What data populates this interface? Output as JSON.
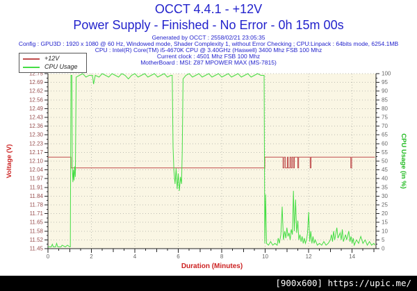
{
  "header": {
    "title": "OCCT 4.4.1 - +12V",
    "subtitle": "Power Supply - Finished - No Error - 0h 15m 00s",
    "generated": "Generated by OCCT : 2558/02/21 23:05:35",
    "config_lines": [
      "Config : GPU3D : 1920 x 1080 @ 60 Hz, Windowed mode, Shader Complexity 1, without Error Checking ; CPU:Linpack : 64bits mode, 6254.1MB",
      "CPU : Intel(R) Core(TM) i5-4670K CPU @ 3.40GHz (Haswell) 3400 Mhz FSB 100 Mhz",
      "Current clock : 4501 Mhz FSB 100 Mhz",
      "MotherBoard : MSI: Z87 MPOWER MAX (MS-7815)"
    ]
  },
  "legend": {
    "items": [
      {
        "label": "+12V",
        "color": "#bf4b4b"
      },
      {
        "label": "CPU Usage",
        "color": "#44dd44"
      }
    ]
  },
  "watermark": "[900x600] https://upic.me/",
  "colors": {
    "header_blue": "#2222cc",
    "axis_red": "#cc2222",
    "axis_green": "#22bb22",
    "trace_red": "#bf4b4b",
    "trace_green": "#44dd44",
    "plot_bg": "#faf6e4",
    "grid": "#bcbcb2",
    "axis_line": "#222222",
    "tick_label_left": "#995050",
    "tick_label": "#666666"
  },
  "chart_data": {
    "type": "line",
    "title": "OCCT 4.4.1 - +12V",
    "grid": true,
    "legend_position": "top-left",
    "x_axis": {
      "label": "Duration (Minutes)",
      "min": 0,
      "max": 15.1,
      "major_ticks": [
        0,
        2,
        4,
        6,
        8,
        10,
        12,
        14
      ],
      "minor_step": 0.5
    },
    "y_left": {
      "label": "Voltage (V)",
      "min": 11.45,
      "max": 12.75,
      "tick_labels": [
        "11.45",
        "11.52",
        "11.58",
        "11.65",
        "11.71",
        "11.78",
        "11.84",
        "11.91",
        "11.97",
        "12.04",
        "12.10",
        "12.17",
        "12.23",
        "12.30",
        "12.36",
        "12.43",
        "12.49",
        "12.56",
        "12.62",
        "12.69",
        "12.75"
      ]
    },
    "y_right": {
      "label": "CPU Usage (in %)",
      "min": 0,
      "max": 100,
      "tick_step": 5
    },
    "series": [
      {
        "name": "+12V",
        "axis": "left",
        "color": "#bf4b4b",
        "points": [
          [
            0,
            12.13
          ],
          [
            1.06,
            12.13
          ],
          [
            1.06,
            12.05
          ],
          [
            9.98,
            12.05
          ],
          [
            9.98,
            12.13
          ],
          [
            10.82,
            12.13
          ],
          [
            10.82,
            12.05
          ],
          [
            10.87,
            12.05
          ],
          [
            10.87,
            12.13
          ],
          [
            10.93,
            12.13
          ],
          [
            10.93,
            12.05
          ],
          [
            11.02,
            12.05
          ],
          [
            11.02,
            12.13
          ],
          [
            11.06,
            12.13
          ],
          [
            11.06,
            12.05
          ],
          [
            11.14,
            12.05
          ],
          [
            11.14,
            12.13
          ],
          [
            11.19,
            12.13
          ],
          [
            11.19,
            12.05
          ],
          [
            11.24,
            12.05
          ],
          [
            11.24,
            12.13
          ],
          [
            11.3,
            12.13
          ],
          [
            11.3,
            12.05
          ],
          [
            11.34,
            12.05
          ],
          [
            11.34,
            12.13
          ],
          [
            11.5,
            12.13
          ],
          [
            11.5,
            12.05
          ],
          [
            11.54,
            12.05
          ],
          [
            11.54,
            12.13
          ],
          [
            12.07,
            12.13
          ],
          [
            12.07,
            12.05
          ],
          [
            12.11,
            12.05
          ],
          [
            12.11,
            12.13
          ],
          [
            13.94,
            12.13
          ],
          [
            13.94,
            12.05
          ],
          [
            13.98,
            12.05
          ],
          [
            13.98,
            12.13
          ],
          [
            15.05,
            12.13
          ]
        ]
      },
      {
        "name": "CPU Usage",
        "axis": "right",
        "color": "#44dd44",
        "points": [
          [
            0,
            1
          ],
          [
            0.15,
            1
          ],
          [
            0.2,
            2.5
          ],
          [
            0.25,
            1
          ],
          [
            0.35,
            1
          ],
          [
            0.4,
            3
          ],
          [
            0.45,
            1
          ],
          [
            0.6,
            1
          ],
          [
            0.65,
            2
          ],
          [
            0.8,
            1
          ],
          [
            0.9,
            2
          ],
          [
            1.0,
            1
          ],
          [
            1.03,
            1
          ],
          [
            1.06,
            99
          ],
          [
            1.1,
            99
          ],
          [
            1.12,
            46
          ],
          [
            1.15,
            38
          ],
          [
            1.17,
            45
          ],
          [
            1.2,
            39
          ],
          [
            1.23,
            47
          ],
          [
            1.26,
            41
          ],
          [
            1.3,
            98
          ],
          [
            1.45,
            99
          ],
          [
            1.6,
            100
          ],
          [
            1.75,
            98
          ],
          [
            1.9,
            99
          ],
          [
            2.05,
            99
          ],
          [
            2.1,
            94
          ],
          [
            2.18,
            99
          ],
          [
            2.35,
            98
          ],
          [
            2.5,
            100
          ],
          [
            2.65,
            99
          ],
          [
            2.8,
            98
          ],
          [
            2.95,
            100
          ],
          [
            3.1,
            99
          ],
          [
            3.25,
            98
          ],
          [
            3.4,
            100
          ],
          [
            3.55,
            99
          ],
          [
            3.7,
            97
          ],
          [
            3.85,
            99
          ],
          [
            4.0,
            100
          ],
          [
            4.15,
            98
          ],
          [
            4.3,
            99
          ],
          [
            4.45,
            100
          ],
          [
            4.6,
            98
          ],
          [
            4.75,
            99
          ],
          [
            4.9,
            100
          ],
          [
            5.05,
            98
          ],
          [
            5.2,
            99
          ],
          [
            5.35,
            100
          ],
          [
            5.5,
            98
          ],
          [
            5.65,
            99
          ],
          [
            5.72,
            99
          ],
          [
            5.76,
            58
          ],
          [
            5.8,
            44
          ],
          [
            5.85,
            37
          ],
          [
            5.9,
            46
          ],
          [
            5.95,
            34
          ],
          [
            6.0,
            43
          ],
          [
            6.05,
            33
          ],
          [
            6.1,
            41
          ],
          [
            6.15,
            37
          ],
          [
            6.18,
            55
          ],
          [
            6.22,
            97
          ],
          [
            6.35,
            99
          ],
          [
            6.5,
            100
          ],
          [
            6.65,
            98
          ],
          [
            6.8,
            99
          ],
          [
            6.95,
            100
          ],
          [
            7.1,
            98
          ],
          [
            7.25,
            99
          ],
          [
            7.4,
            100
          ],
          [
            7.55,
            98
          ],
          [
            7.7,
            99
          ],
          [
            7.85,
            100
          ],
          [
            8.0,
            98
          ],
          [
            8.15,
            99
          ],
          [
            8.3,
            100
          ],
          [
            8.45,
            98
          ],
          [
            8.6,
            99
          ],
          [
            8.75,
            100
          ],
          [
            8.9,
            98
          ],
          [
            9.05,
            99
          ],
          [
            9.2,
            100
          ],
          [
            9.35,
            98
          ],
          [
            9.5,
            99
          ],
          [
            9.65,
            100
          ],
          [
            9.8,
            99
          ],
          [
            9.95,
            99
          ],
          [
            9.98,
            3
          ],
          [
            10.02,
            31
          ],
          [
            10.06,
            3
          ],
          [
            10.15,
            2
          ],
          [
            10.25,
            4
          ],
          [
            10.35,
            2
          ],
          [
            10.45,
            3
          ],
          [
            10.55,
            2
          ],
          [
            10.6,
            6
          ],
          [
            10.65,
            3
          ],
          [
            10.72,
            8
          ],
          [
            10.78,
            24
          ],
          [
            10.84,
            5
          ],
          [
            10.9,
            10
          ],
          [
            10.95,
            6
          ],
          [
            11.0,
            12
          ],
          [
            11.05,
            7
          ],
          [
            11.1,
            9
          ],
          [
            11.15,
            5
          ],
          [
            11.2,
            11
          ],
          [
            11.25,
            8
          ],
          [
            11.3,
            33
          ],
          [
            11.34,
            10
          ],
          [
            11.4,
            28
          ],
          [
            11.45,
            9
          ],
          [
            11.5,
            16
          ],
          [
            11.55,
            5
          ],
          [
            11.6,
            8
          ],
          [
            11.65,
            4
          ],
          [
            11.7,
            7
          ],
          [
            11.75,
            3
          ],
          [
            11.8,
            6
          ],
          [
            11.85,
            3
          ],
          [
            11.9,
            5
          ],
          [
            11.95,
            9
          ],
          [
            12.0,
            21
          ],
          [
            12.05,
            4
          ],
          [
            12.1,
            10
          ],
          [
            12.15,
            3
          ],
          [
            12.2,
            7
          ],
          [
            12.25,
            3
          ],
          [
            12.3,
            5
          ],
          [
            12.4,
            2
          ],
          [
            12.5,
            3
          ],
          [
            12.6,
            2
          ],
          [
            12.7,
            4
          ],
          [
            12.8,
            2
          ],
          [
            12.9,
            3
          ],
          [
            13.0,
            5
          ],
          [
            13.05,
            8
          ],
          [
            13.1,
            4
          ],
          [
            13.15,
            10
          ],
          [
            13.2,
            5
          ],
          [
            13.3,
            12
          ],
          [
            13.35,
            6
          ],
          [
            13.45,
            9
          ],
          [
            13.5,
            5
          ],
          [
            13.55,
            11
          ],
          [
            13.6,
            4
          ],
          [
            13.7,
            8
          ],
          [
            13.75,
            5
          ],
          [
            13.85,
            10
          ],
          [
            13.9,
            4
          ],
          [
            13.95,
            7
          ],
          [
            14.0,
            3
          ],
          [
            14.05,
            6
          ],
          [
            14.1,
            2
          ],
          [
            14.2,
            5
          ],
          [
            14.3,
            3
          ],
          [
            14.4,
            7
          ],
          [
            14.5,
            3
          ],
          [
            14.6,
            5
          ],
          [
            14.7,
            2
          ],
          [
            14.8,
            4
          ],
          [
            14.9,
            2
          ],
          [
            15.0,
            3
          ],
          [
            15.05,
            2
          ]
        ]
      }
    ]
  }
}
